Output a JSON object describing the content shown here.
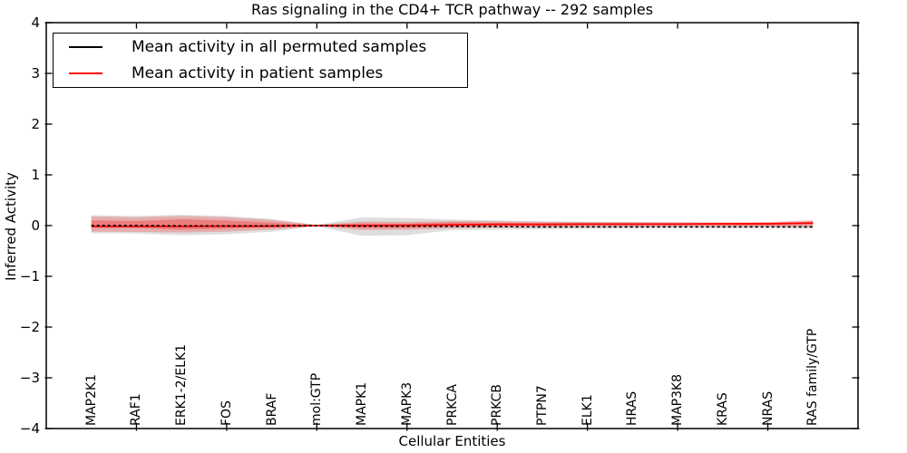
{
  "title": "Ras signaling in the CD4+ TCR pathway -- 292 samples",
  "colors": {
    "patient_red": "#ff0000",
    "permuted_black": "#000000",
    "permuted_band": "rgba(0,0,0,0.13)",
    "patient_band_outer": "rgba(255,0,0,0.22)",
    "patient_band_inner": "rgba(255,0,0,0.28)"
  },
  "legend": {
    "items": [
      {
        "label": "Mean activity in all permuted samples",
        "color": "#000000"
      },
      {
        "label": "Mean activity in patient samples",
        "color": "#ff0000"
      }
    ]
  },
  "y_axis": {
    "label": "Inferred Activity",
    "tick_labels": [
      "4",
      "3",
      "2",
      "1",
      "0",
      "−1",
      "−2",
      "−3",
      "−4"
    ]
  },
  "x_axis": {
    "label": "Cellular Entities"
  },
  "chart_data": {
    "type": "line",
    "title": "Ras signaling in the CD4+ TCR pathway -- 292 samples",
    "xlabel": "Cellular Entities",
    "ylabel": "Inferred Activity",
    "ylim": [
      -4,
      4
    ],
    "ytick_values": [
      4,
      3,
      2,
      1,
      0,
      -1,
      -2,
      -3,
      -4
    ],
    "xtick_indices": [
      1,
      3,
      5,
      7,
      9,
      11,
      13,
      15
    ],
    "grid": false,
    "legend_position": "upper left",
    "categories": [
      "MAP2K1",
      "RAF1",
      "ERK1-2/ELK1",
      "FOS",
      "BRAF",
      "mol:GTP",
      "MAPK1",
      "MAPK3",
      "PRKCA",
      "PRKCB",
      "PTPN7",
      "ELK1",
      "HRAS",
      "MAP3K8",
      "KRAS",
      "NRAS",
      "RAS family/GTP"
    ],
    "series": [
      {
        "name": "Mean activity in all permuted samples",
        "slug": "permuted-mean-line",
        "color": "#000000",
        "style": "dashed",
        "values": [
          0.0,
          0.0,
          -0.005,
          -0.005,
          -0.005,
          0.0,
          -0.01,
          -0.01,
          -0.015,
          -0.02,
          -0.025,
          -0.025,
          -0.025,
          -0.025,
          -0.025,
          -0.025,
          -0.025
        ]
      },
      {
        "name": "Mean activity in patient samples",
        "slug": "patient-mean-line",
        "color": "#ff0000",
        "style": "solid",
        "values": [
          -0.015,
          -0.015,
          -0.015,
          -0.01,
          -0.01,
          0.0,
          0.0,
          0.005,
          0.015,
          0.025,
          0.025,
          0.03,
          0.03,
          0.03,
          0.035,
          0.035,
          0.05
        ]
      }
    ],
    "bands": [
      {
        "name": "permuted-std-band",
        "fill": "rgba(0,0,0,0.13)",
        "top": [
          0.205,
          0.19,
          0.215,
          0.19,
          0.13,
          0.015,
          0.16,
          0.15,
          0.12,
          0.1,
          0.085,
          0.075,
          0.07,
          0.065,
          0.06,
          0.06,
          0.09
        ],
        "bottom": [
          -0.15,
          -0.155,
          -0.19,
          -0.17,
          -0.12,
          -0.015,
          -0.2,
          -0.19,
          -0.09,
          -0.08,
          -0.07,
          -0.06,
          -0.055,
          -0.05,
          -0.05,
          -0.05,
          -0.06
        ]
      },
      {
        "name": "patient-outer-band",
        "fill": "rgba(255,0,0,0.22)",
        "top": [
          0.18,
          0.165,
          0.19,
          0.165,
          0.11,
          0.012,
          0.08,
          0.075,
          0.09,
          0.085,
          0.075,
          0.07,
          0.07,
          0.065,
          0.065,
          0.07,
          0.11
        ],
        "bottom": [
          -0.12,
          -0.125,
          -0.135,
          -0.12,
          -0.08,
          -0.012,
          -0.09,
          -0.08,
          -0.055,
          -0.04,
          -0.035,
          -0.03,
          -0.03,
          -0.025,
          -0.025,
          -0.025,
          -0.03
        ]
      },
      {
        "name": "patient-inner-band",
        "fill": "rgba(255,0,0,0.28)",
        "top": [
          0.105,
          0.09,
          0.125,
          0.1,
          0.06,
          0.006,
          0.045,
          0.04,
          0.065,
          0.055,
          0.05,
          0.05,
          0.05,
          0.05,
          0.05,
          0.055,
          0.075
        ],
        "bottom": [
          -0.05,
          -0.05,
          -0.08,
          -0.06,
          -0.035,
          -0.006,
          -0.05,
          -0.045,
          -0.02,
          -0.01,
          -0.005,
          0.0,
          0.0,
          0.005,
          0.005,
          0.005,
          0.02
        ]
      }
    ]
  }
}
